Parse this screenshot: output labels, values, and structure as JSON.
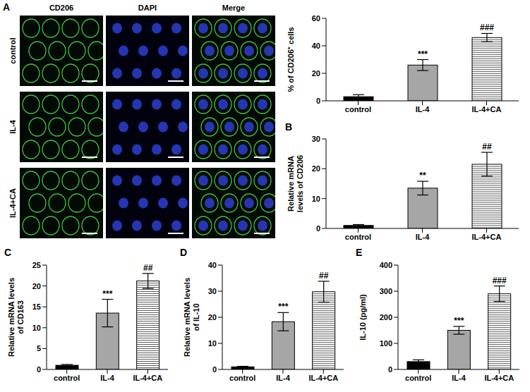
{
  "images": {
    "panel": "A",
    "columns": [
      "CD206",
      "DAPI",
      "Merge"
    ],
    "rows": [
      "control",
      "IL-4",
      "IL-4+CA"
    ]
  },
  "chart_data": [
    {
      "type": "bar",
      "ylabel": "% of CD206⁺ cells",
      "categories": [
        "control",
        "IL-4",
        "IL-4+CA"
      ],
      "values": [
        3,
        26,
        46
      ],
      "errors": [
        1.5,
        4,
        3
      ],
      "annotations": [
        null,
        "***",
        "###"
      ],
      "colors": [
        "#000000",
        "#a6a6a6",
        "#ffffff"
      ],
      "ylim": [
        0,
        60
      ],
      "yticks": [
        0,
        20,
        40,
        60
      ]
    },
    {
      "type": "bar",
      "panel": "B",
      "ylabel": "Relative mRNA levels of CD206",
      "categories": [
        "control",
        "IL-4",
        "IL-4+CA"
      ],
      "values": [
        1,
        13.5,
        21.5
      ],
      "errors": [
        0.3,
        2.3,
        4
      ],
      "annotations": [
        null,
        "**",
        "##"
      ],
      "colors": [
        "#000000",
        "#a6a6a6",
        "#ffffff"
      ],
      "ylim": [
        0,
        30
      ],
      "yticks": [
        0,
        10,
        20,
        30
      ]
    },
    {
      "type": "bar",
      "panel": "C",
      "ylabel": "Relative mRNA levels of CD163",
      "categories": [
        "control",
        "IL-4",
        "IL-4+CA"
      ],
      "values": [
        1,
        13.5,
        21.2
      ],
      "errors": [
        0.2,
        3.3,
        1.8
      ],
      "annotations": [
        null,
        "***",
        "##"
      ],
      "colors": [
        "#000000",
        "#a6a6a6",
        "#ffffff"
      ],
      "ylim": [
        0,
        25
      ],
      "yticks": [
        0,
        5,
        10,
        15,
        20,
        25
      ]
    },
    {
      "type": "bar",
      "panel": "D",
      "ylabel": "Relative mRNA levels of IL-10",
      "categories": [
        "control",
        "IL-4",
        "IL-4+CA"
      ],
      "values": [
        1,
        18.3,
        29.8
      ],
      "errors": [
        0.2,
        3.5,
        4
      ],
      "annotations": [
        null,
        "***",
        "##"
      ],
      "colors": [
        "#000000",
        "#a6a6a6",
        "#ffffff"
      ],
      "ylim": [
        0,
        40
      ],
      "yticks": [
        0,
        10,
        20,
        30,
        40
      ]
    },
    {
      "type": "bar",
      "panel": "E",
      "ylabel": "IL-10 (pg/ml)",
      "categories": [
        "control",
        "IL-4",
        "IL-4+CA"
      ],
      "values": [
        30,
        150,
        290
      ],
      "errors": [
        7,
        15,
        30
      ],
      "annotations": [
        null,
        "***",
        "###"
      ],
      "colors": [
        "#000000",
        "#a6a6a6",
        "#ffffff"
      ],
      "ylim": [
        0,
        400
      ],
      "yticks": [
        0,
        100,
        200,
        300,
        400
      ]
    }
  ]
}
